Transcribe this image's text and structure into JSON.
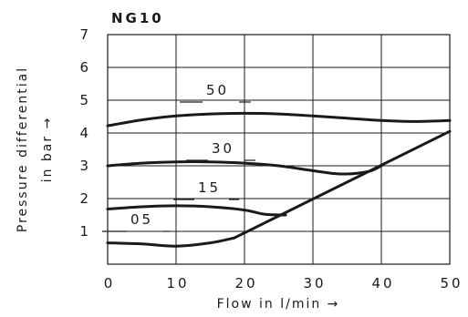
{
  "chart_data": {
    "type": "line",
    "title": "NG10",
    "xlabel": "Flow in l/min →",
    "ylabel_line1": "Pressure differential",
    "ylabel_line2": "in bar →",
    "xlim": [
      0,
      50
    ],
    "ylim": [
      0,
      7
    ],
    "x_ticks": [
      "0",
      "10",
      "20",
      "30",
      "40",
      "50"
    ],
    "y_ticks": [
      "1",
      "2",
      "3",
      "4",
      "5",
      "6",
      "7"
    ],
    "grid": true,
    "series": [
      {
        "name": "50",
        "x": [
          0,
          5,
          10,
          15,
          20,
          25,
          30,
          35,
          40,
          45,
          50
        ],
        "y": [
          4.22,
          4.4,
          4.52,
          4.58,
          4.6,
          4.58,
          4.52,
          4.45,
          4.38,
          4.35,
          4.38
        ]
      },
      {
        "name": "30",
        "x": [
          0,
          5,
          10,
          15,
          20,
          25,
          30,
          34,
          38,
          40
        ],
        "y": [
          3.0,
          3.08,
          3.12,
          3.12,
          3.08,
          3.0,
          2.85,
          2.75,
          2.82,
          3.0
        ]
      },
      {
        "name": "15",
        "x": [
          0,
          5,
          10,
          15,
          20,
          23,
          26
        ],
        "y": [
          1.68,
          1.75,
          1.78,
          1.75,
          1.65,
          1.52,
          1.5
        ]
      },
      {
        "name": "05",
        "x": [
          0,
          5,
          10,
          15,
          18.5
        ],
        "y": [
          0.65,
          0.62,
          0.55,
          0.65,
          0.8
        ]
      },
      {
        "name": "",
        "x": [
          18.5,
          50
        ],
        "y": [
          0.8,
          4.05
        ]
      }
    ]
  }
}
